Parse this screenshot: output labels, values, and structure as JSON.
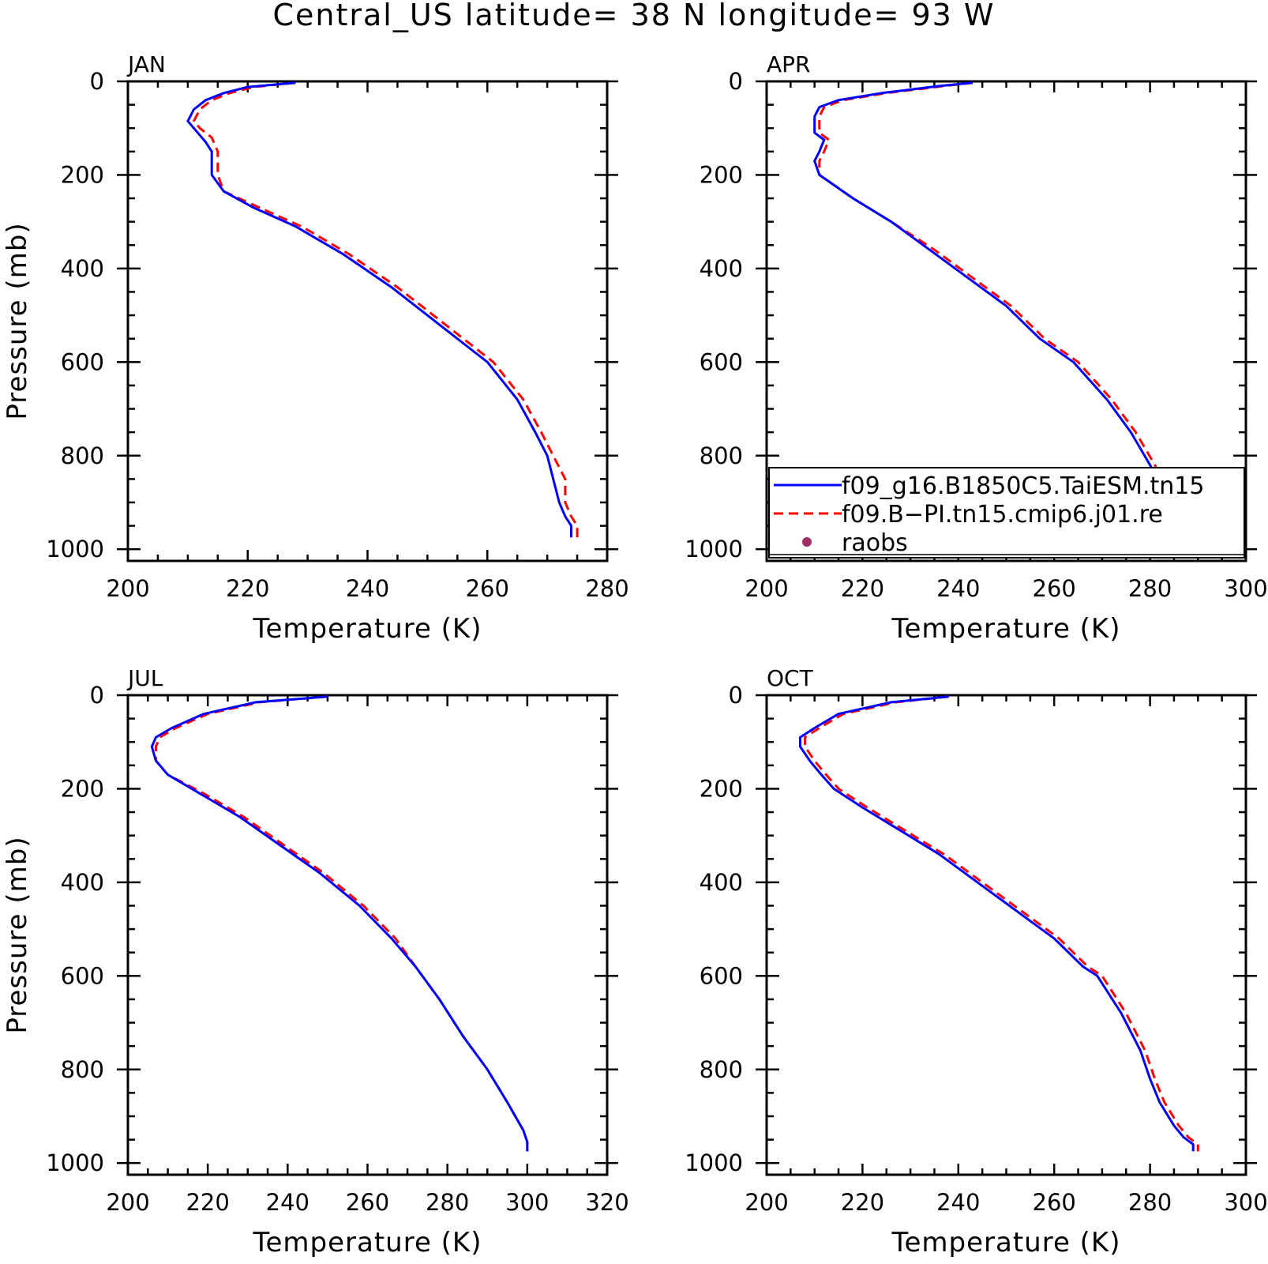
{
  "title": "Central_US  latitude= 38 N longitude= 93 W",
  "legend": {
    "entries": [
      {
        "label": "f09_g16.B1850C5.TaiESM.tn15",
        "style": "solid",
        "color": "#0000ff"
      },
      {
        "label": "f09.B−PI.tn15.cmip6.j01.re",
        "style": "dashed",
        "color": "#ff0000"
      },
      {
        "label": "raobs",
        "style": "dot",
        "color": "#a0306a"
      }
    ]
  },
  "chart_data": [
    {
      "type": "line",
      "panel_label": "JAN",
      "xlabel": "Temperature (K)",
      "ylabel": "Pressure (mb)",
      "xlim": [
        200,
        280
      ],
      "ylim": [
        1025,
        0
      ],
      "xticks": [
        "200",
        "220",
        "240",
        "260",
        "280"
      ],
      "yticks": [
        "0",
        "200",
        "400",
        "600",
        "800",
        "1000"
      ],
      "series": [
        {
          "name": "f09_g16.B1850C5.TaiESM.tn15",
          "color": "#0000ff",
          "style": "solid",
          "points": [
            [
              228,
              3
            ],
            [
              220,
              12
            ],
            [
              216,
              25
            ],
            [
              213,
              40
            ],
            [
              211,
              60
            ],
            [
              210,
              85
            ],
            [
              211,
              100
            ],
            [
              213,
              130
            ],
            [
              214,
              150
            ],
            [
              214,
              200
            ],
            [
              216,
              235
            ],
            [
              221,
              270
            ],
            [
              228,
              310
            ],
            [
              236,
              370
            ],
            [
              244,
              440
            ],
            [
              252,
              520
            ],
            [
              258,
              580
            ],
            [
              260,
              600
            ],
            [
              265,
              680
            ],
            [
              268,
              750
            ],
            [
              270,
              800
            ],
            [
              271,
              850
            ],
            [
              272,
              900
            ],
            [
              273,
              930
            ],
            [
              274,
              950
            ],
            [
              274,
              975
            ]
          ]
        },
        {
          "name": "f09.B−PI.tn15.cmip6.j01.re",
          "color": "#ff0000",
          "style": "dashed",
          "points": [
            [
              228,
              3
            ],
            [
              221,
              12
            ],
            [
              217,
              25
            ],
            [
              214,
              40
            ],
            [
              212,
              60
            ],
            [
              211,
              85
            ],
            [
              212,
              100
            ],
            [
              214,
              120
            ],
            [
              215,
              150
            ],
            [
              215,
              200
            ],
            [
              216,
              235
            ],
            [
              222,
              270
            ],
            [
              229,
              310
            ],
            [
              237,
              370
            ],
            [
              245,
              440
            ],
            [
              253,
              520
            ],
            [
              259,
              580
            ],
            [
              261,
              600
            ],
            [
              266,
              680
            ],
            [
              269,
              750
            ],
            [
              271,
              800
            ],
            [
              273,
              850
            ],
            [
              273,
              900
            ],
            [
              274,
              930
            ],
            [
              275,
              950
            ],
            [
              275,
              975
            ]
          ]
        }
      ]
    },
    {
      "type": "line",
      "panel_label": "APR",
      "xlabel": "Temperature (K)",
      "ylabel": "",
      "xlim": [
        200,
        300
      ],
      "ylim": [
        1025,
        0
      ],
      "xticks": [
        "200",
        "220",
        "240",
        "260",
        "280",
        "300"
      ],
      "yticks": [
        "0",
        "200",
        "400",
        "600",
        "800",
        "1000"
      ],
      "series": [
        {
          "name": "f09_g16.B1850C5.TaiESM.tn15",
          "color": "#0000ff",
          "style": "solid",
          "points": [
            [
              243,
              3
            ],
            [
              236,
              10
            ],
            [
              224,
              25
            ],
            [
              215,
              40
            ],
            [
              211,
              55
            ],
            [
              210,
              75
            ],
            [
              210,
              110
            ],
            [
              212,
              125
            ],
            [
              211,
              150
            ],
            [
              210,
              170
            ],
            [
              211,
              200
            ],
            [
              218,
              250
            ],
            [
              226,
              300
            ],
            [
              234,
              360
            ],
            [
              242,
              420
            ],
            [
              250,
              480
            ],
            [
              257,
              550
            ],
            [
              264,
              600
            ],
            [
              271,
              680
            ],
            [
              276,
              750
            ],
            [
              280,
              820
            ],
            [
              284,
              900
            ],
            [
              286,
              935
            ],
            [
              287,
              955
            ],
            [
              288,
              975
            ]
          ]
        },
        {
          "name": "f09.B−PI.tn15.cmip6.j01.re",
          "color": "#ff0000",
          "style": "dashed",
          "points": [
            [
              243,
              3
            ],
            [
              237,
              10
            ],
            [
              225,
              25
            ],
            [
              216,
              40
            ],
            [
              212,
              55
            ],
            [
              211,
              75
            ],
            [
              211,
              110
            ],
            [
              213,
              125
            ],
            [
              212,
              150
            ],
            [
              211,
              170
            ],
            [
              211,
              200
            ],
            [
              218,
              250
            ],
            [
              226,
              300
            ],
            [
              235,
              360
            ],
            [
              243,
              420
            ],
            [
              251,
              480
            ],
            [
              258,
              550
            ],
            [
              265,
              600
            ],
            [
              272,
              680
            ],
            [
              277,
              750
            ],
            [
              281,
              820
            ],
            [
              285,
              900
            ],
            [
              287,
              935
            ],
            [
              289,
              955
            ],
            [
              289,
              970
            ]
          ]
        }
      ]
    },
    {
      "type": "line",
      "panel_label": "JUL",
      "xlabel": "Temperature (K)",
      "ylabel": "Pressure (mb)",
      "xlim": [
        200,
        320
      ],
      "ylim": [
        1025,
        0
      ],
      "xticks": [
        "200",
        "220",
        "240",
        "260",
        "280",
        "300",
        "320"
      ],
      "yticks": [
        "0",
        "200",
        "400",
        "600",
        "800",
        "1000"
      ],
      "series": [
        {
          "name": "f09_g16.B1850C5.TaiESM.tn15",
          "color": "#0000ff",
          "style": "solid",
          "points": [
            [
              250,
              3
            ],
            [
              232,
              15
            ],
            [
              219,
              40
            ],
            [
              211,
              70
            ],
            [
              207,
              90
            ],
            [
              206,
              110
            ],
            [
              207,
              140
            ],
            [
              210,
              170
            ],
            [
              218,
              210
            ],
            [
              228,
              260
            ],
            [
              238,
              320
            ],
            [
              248,
              380
            ],
            [
              258,
              450
            ],
            [
              266,
              520
            ],
            [
              272,
              580
            ],
            [
              278,
              650
            ],
            [
              284,
              730
            ],
            [
              290,
              800
            ],
            [
              295,
              870
            ],
            [
              299,
              930
            ],
            [
              300,
              955
            ],
            [
              300,
              975
            ]
          ]
        },
        {
          "name": "f09.B−PI.tn15.cmip6.j01.re",
          "color": "#ff0000",
          "style": "dashed",
          "points": [
            [
              250,
              3
            ],
            [
              233,
              15
            ],
            [
              220,
              40
            ],
            [
              212,
              70
            ],
            [
              208,
              90
            ],
            [
              207,
              110
            ],
            [
              207,
              140
            ],
            [
              210,
              170
            ],
            [
              219,
              210
            ],
            [
              229,
              260
            ],
            [
              239,
              320
            ],
            [
              249,
              380
            ],
            [
              259,
              450
            ],
            [
              267,
              520
            ],
            [
              272,
              580
            ],
            [
              278,
              650
            ],
            [
              284,
              730
            ],
            [
              290,
              800
            ],
            [
              295,
              870
            ],
            [
              299,
              930
            ],
            [
              300,
              955
            ],
            [
              300,
              975
            ]
          ]
        }
      ]
    },
    {
      "type": "line",
      "panel_label": "OCT",
      "xlabel": "Temperature (K)",
      "ylabel": "",
      "xlim": [
        200,
        300
      ],
      "ylim": [
        1025,
        0
      ],
      "xticks": [
        "200",
        "220",
        "240",
        "260",
        "280",
        "300"
      ],
      "yticks": [
        "0",
        "200",
        "400",
        "600",
        "800",
        "1000"
      ],
      "series": [
        {
          "name": "f09_g16.B1850C5.TaiESM.tn15",
          "color": "#0000ff",
          "style": "solid",
          "points": [
            [
              238,
              3
            ],
            [
              226,
              15
            ],
            [
              215,
              40
            ],
            [
              210,
              70
            ],
            [
              207,
              90
            ],
            [
              207,
              110
            ],
            [
              209,
              140
            ],
            [
              211,
              165
            ],
            [
              214,
              200
            ],
            [
              220,
              240
            ],
            [
              228,
              290
            ],
            [
              236,
              340
            ],
            [
              244,
              400
            ],
            [
              252,
              460
            ],
            [
              260,
              520
            ],
            [
              266,
              580
            ],
            [
              269,
              600
            ],
            [
              274,
              680
            ],
            [
              278,
              760
            ],
            [
              280,
              820
            ],
            [
              282,
              870
            ],
            [
              285,
              920
            ],
            [
              287,
              945
            ],
            [
              289,
              960
            ],
            [
              289,
              975
            ]
          ]
        },
        {
          "name": "f09.B−PI.tn15.cmip6.j01.re",
          "color": "#ff0000",
          "style": "dashed",
          "points": [
            [
              238,
              3
            ],
            [
              227,
              15
            ],
            [
              216,
              40
            ],
            [
              211,
              70
            ],
            [
              208,
              90
            ],
            [
              208,
              110
            ],
            [
              210,
              140
            ],
            [
              212,
              165
            ],
            [
              215,
              200
            ],
            [
              221,
              240
            ],
            [
              229,
              290
            ],
            [
              237,
              340
            ],
            [
              245,
              400
            ],
            [
              253,
              460
            ],
            [
              261,
              520
            ],
            [
              267,
              580
            ],
            [
              270,
              600
            ],
            [
              275,
              680
            ],
            [
              279,
              760
            ],
            [
              281,
              820
            ],
            [
              283,
              870
            ],
            [
              286,
              920
            ],
            [
              288,
              945
            ],
            [
              290,
              960
            ],
            [
              290,
              975
            ]
          ]
        }
      ]
    }
  ]
}
